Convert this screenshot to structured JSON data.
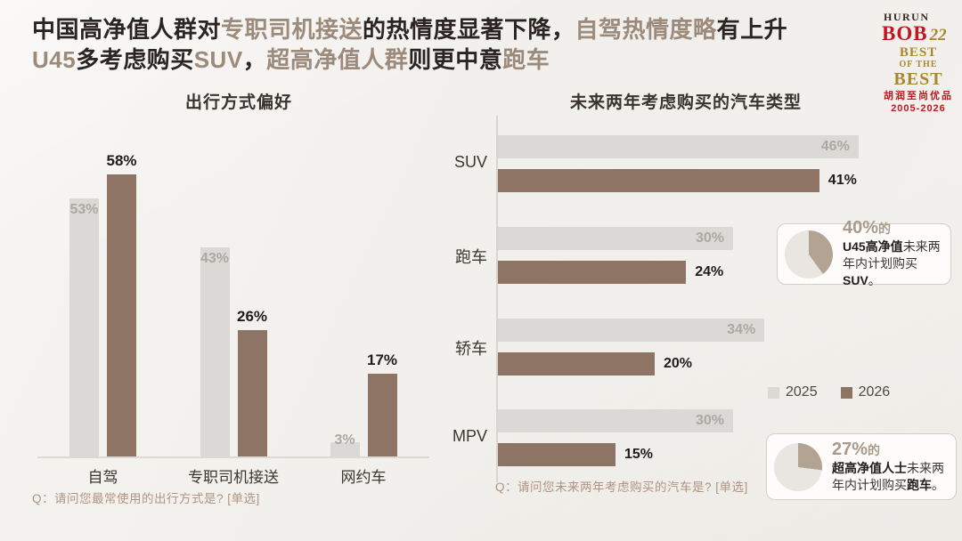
{
  "headline": {
    "line1": [
      {
        "t": "中国高净值人群对",
        "h": 0
      },
      {
        "t": "专职司机接送",
        "h": 1
      },
      {
        "t": "的热情度显著下降，",
        "h": 0
      },
      {
        "t": "自驾热情度略",
        "h": 1
      },
      {
        "t": "有上升",
        "h": 0
      }
    ],
    "line2": [
      {
        "t": "U45",
        "h": 1
      },
      {
        "t": "多考虑购买",
        "h": 0
      },
      {
        "t": "SUV",
        "h": 1
      },
      {
        "t": "，",
        "h": 0
      },
      {
        "t": "超高净值人群",
        "h": 1
      },
      {
        "t": "则更中意",
        "h": 0
      },
      {
        "t": "跑车",
        "h": 1
      }
    ]
  },
  "logo": {
    "brand": "HURUN",
    "bob": "BOB",
    "edition": "22",
    "best1": "BEST",
    "best2": "OF THE",
    "best3": "BEST",
    "cn": "胡润至尚优品",
    "years": "2005-2026"
  },
  "chart_data": [
    {
      "type": "bar",
      "orientation": "vertical",
      "title": "出行方式偏好",
      "categories": [
        "自驾",
        "专职司机接送",
        "网约车"
      ],
      "series": [
        {
          "name": "2025",
          "values": [
            53,
            43,
            3
          ]
        },
        {
          "name": "2026",
          "values": [
            58,
            26,
            17
          ]
        }
      ],
      "unit": "%",
      "ylim": [
        0,
        60
      ],
      "grid": false,
      "footnote": "Q：请问您最常使用的出行方式是? [单选]"
    },
    {
      "type": "bar",
      "orientation": "horizontal",
      "title": "未来两年考虑购买的汽车类型",
      "categories": [
        "SUV",
        "跑车",
        "轿车",
        "MPV"
      ],
      "series": [
        {
          "name": "2025",
          "values": [
            46,
            30,
            34,
            30
          ]
        },
        {
          "name": "2026",
          "values": [
            41,
            24,
            20,
            15
          ]
        }
      ],
      "unit": "%",
      "xlim": [
        0,
        50
      ],
      "grid": false,
      "legend_position": "right-middle",
      "footnote": "Q：请问您未来两年考虑购买的汽车是? [单选]"
    }
  ],
  "legend": {
    "items": [
      {
        "label": "2025",
        "color": "#dbd9d6"
      },
      {
        "label": "2026",
        "color": "#8d7464"
      }
    ]
  },
  "callouts": [
    {
      "pct": 40,
      "value": "40%",
      "suffix": "的",
      "bold1": "U45高净值",
      "text1": "未来两",
      "text2": "年内计划购买",
      "bold2": "SUV",
      "period": "。"
    },
    {
      "pct": 27,
      "value": "27%",
      "suffix": "的",
      "bold1": "超高净值人士",
      "text1": "未来两",
      "text2": "年内计划购买",
      "bold2": "跑车",
      "period": "。"
    }
  ],
  "colors": {
    "bar_2025": "#dbd9d6",
    "bar_2026": "#8d7464",
    "headline_dark": "#2a2522",
    "headline_highlight": "#9c8a7b",
    "label_grey": "#aba8a4",
    "label_black": "#1f1c1a",
    "pie_wedge": "#b3a392",
    "pie_base": "#e9e6e1",
    "footnote": "#b2937f",
    "logo_red": "#c0181f",
    "logo_gold": "#ab872c"
  }
}
